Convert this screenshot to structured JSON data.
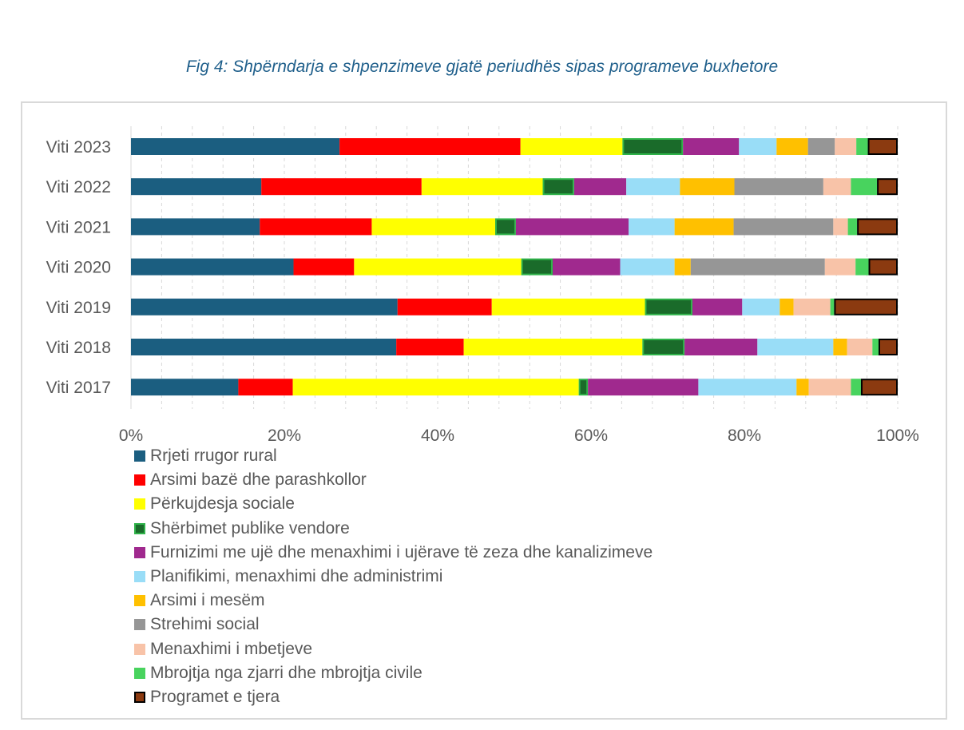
{
  "caption": "Fig 4: Shpërndarja e shpenzimeve gjatë periudhës sipas programeve buxhetore",
  "chart_data": {
    "type": "bar",
    "orientation": "horizontal",
    "stacked": "percent",
    "categories": [
      "Viti 2023",
      "Viti 2022",
      "Viti 2021",
      "Viti 2020",
      "Viti 2019",
      "Viti 2018",
      "Viti 2017"
    ],
    "xlim": [
      0,
      100
    ],
    "xticks": [
      "0%",
      "20%",
      "40%",
      "60%",
      "80%",
      "100%"
    ],
    "grid": "vertical-dashed",
    "legend_position": "bottom",
    "series": [
      {
        "name": "Rrjeti rrugor rural",
        "color": "#1b5e80",
        "border": "",
        "values": [
          27.2,
          17.0,
          16.8,
          21.2,
          34.8,
          34.6,
          14.0
        ]
      },
      {
        "name": "Arsimi bazë dhe parashkollor",
        "color": "#ff0000",
        "border": "",
        "values": [
          23.6,
          20.9,
          14.6,
          7.9,
          12.3,
          8.8,
          7.1
        ]
      },
      {
        "name": "Përkujdesja sociale",
        "color": "#ffff00",
        "border": "",
        "values": [
          13.3,
          15.8,
          16.1,
          21.8,
          20.0,
          23.3,
          37.3
        ]
      },
      {
        "name": "Shërbimet publike vendore",
        "color": "#1a6b2a",
        "border": "#2fb34a",
        "values": [
          7.9,
          4.1,
          2.7,
          4.1,
          6.2,
          5.5,
          1.2
        ]
      },
      {
        "name": "Furnizimi me ujë dhe menaxhimi i ujërave të zeza dhe kanalizimeve",
        "color": "#a0298e",
        "border": "",
        "values": [
          7.3,
          6.8,
          14.7,
          8.8,
          6.5,
          9.5,
          14.4
        ]
      },
      {
        "name": "Planifikimi, menaxhimi dhe administrimi",
        "color": "#99ddf7",
        "border": "",
        "values": [
          4.9,
          7.0,
          6.0,
          7.1,
          4.9,
          9.9,
          12.8
        ]
      },
      {
        "name": "Arsimi i mesëm",
        "color": "#ffc000",
        "border": "",
        "values": [
          4.1,
          7.1,
          7.7,
          2.1,
          1.8,
          1.8,
          1.6
        ]
      },
      {
        "name": "Strehimi social",
        "color": "#969696",
        "border": "",
        "values": [
          3.5,
          11.6,
          13.0,
          17.5,
          0,
          0,
          0
        ]
      },
      {
        "name": "Menaxhimi i mbetjeve",
        "color": "#f8c3a8",
        "border": "",
        "values": [
          2.8,
          3.6,
          1.9,
          4.0,
          4.8,
          3.3,
          5.5
        ]
      },
      {
        "name": "Mbrojtja nga zjarri dhe mbrojtja civile",
        "color": "#48d35e",
        "border": "",
        "values": [
          1.5,
          3.4,
          1.2,
          1.7,
          0.5,
          0.8,
          1.3
        ]
      },
      {
        "name": "Programet e tjera",
        "color": "#8b3a10",
        "border": "#000000",
        "values": [
          3.9,
          2.7,
          5.3,
          3.8,
          8.3,
          2.5,
          4.8
        ]
      }
    ]
  }
}
